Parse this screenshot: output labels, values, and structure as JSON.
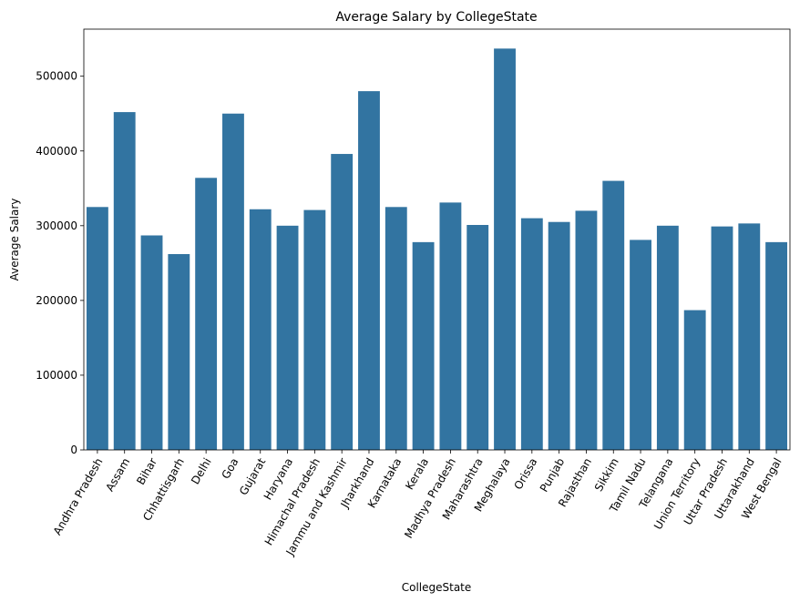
{
  "chart_data": {
    "type": "bar",
    "title": "Average Salary by CollegeState",
    "xlabel": "CollegeState",
    "ylabel": "Average Salary",
    "ylim": [
      0,
      563000
    ],
    "yticks": [
      0,
      100000,
      200000,
      300000,
      400000,
      500000
    ],
    "grid": false,
    "bar_color": "#3274a1",
    "categories": [
      "Andhra Pradesh",
      "Assam",
      "Bihar",
      "Chhattisgarh",
      "Delhi",
      "Goa",
      "Gujarat",
      "Haryana",
      "Himachal Pradesh",
      "Jammu and Kashmir",
      "Jharkhand",
      "Karnataka",
      "Kerala",
      "Madhya Pradesh",
      "Maharashtra",
      "Meghalaya",
      "Orissa",
      "Punjab",
      "Rajasthan",
      "Sikkim",
      "Tamil Nadu",
      "Telangana",
      "Union Territory",
      "Uttar Pradesh",
      "Uttarakhand",
      "West Bengal"
    ],
    "values": [
      325000,
      452000,
      287000,
      262000,
      364000,
      450000,
      322000,
      300000,
      321000,
      396000,
      480000,
      325000,
      278000,
      331000,
      301000,
      537000,
      310000,
      305000,
      320000,
      360000,
      281000,
      300000,
      187000,
      299000,
      303000,
      278000
    ]
  }
}
